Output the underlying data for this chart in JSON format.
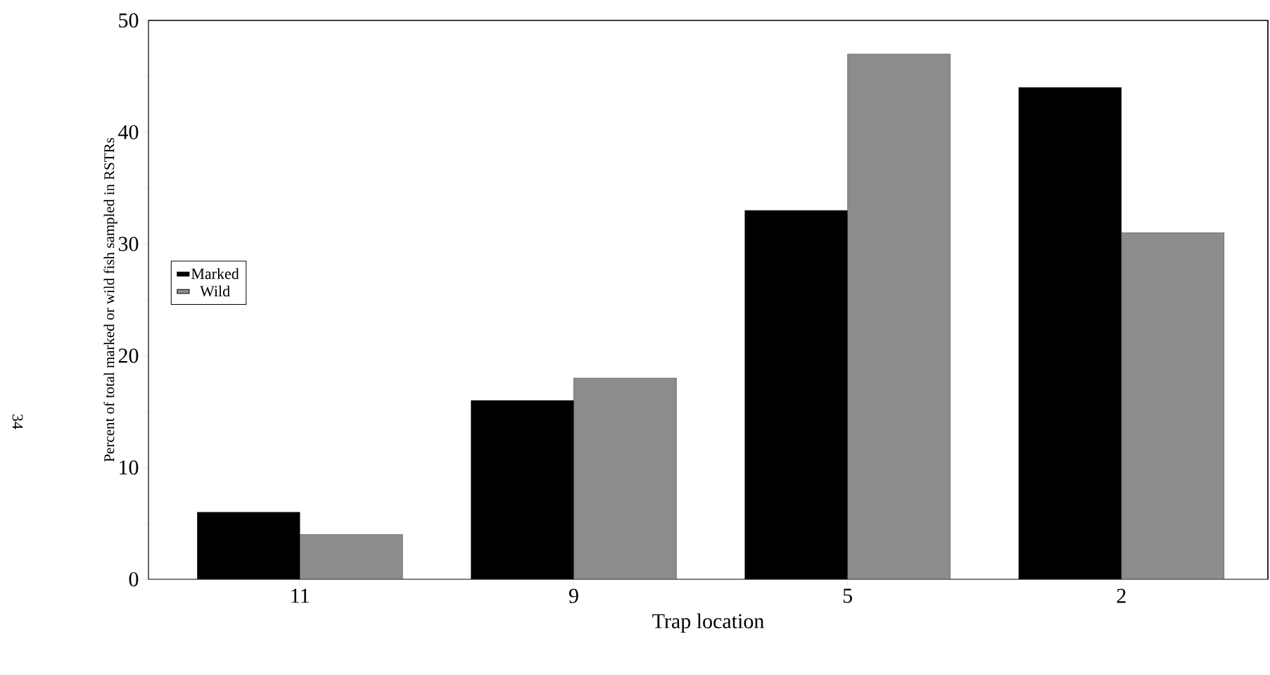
{
  "chart_data": {
    "type": "bar",
    "xlabel": "Trap location",
    "ylabel": "Percent of total marked or wild fish sampled in RSTRs",
    "categories": [
      "11",
      "9",
      "5",
      "2"
    ],
    "series": [
      {
        "name": "Marked",
        "color": "#000000",
        "values": [
          6,
          16,
          33,
          44
        ]
      },
      {
        "name": "Wild",
        "color": "#8c8c8c",
        "values": [
          4,
          18,
          47,
          31
        ]
      }
    ],
    "ylim": [
      0,
      50
    ],
    "yticks": [
      0,
      10,
      20,
      30,
      40,
      50
    ],
    "legend": "left",
    "annotations": [
      "34"
    ]
  }
}
